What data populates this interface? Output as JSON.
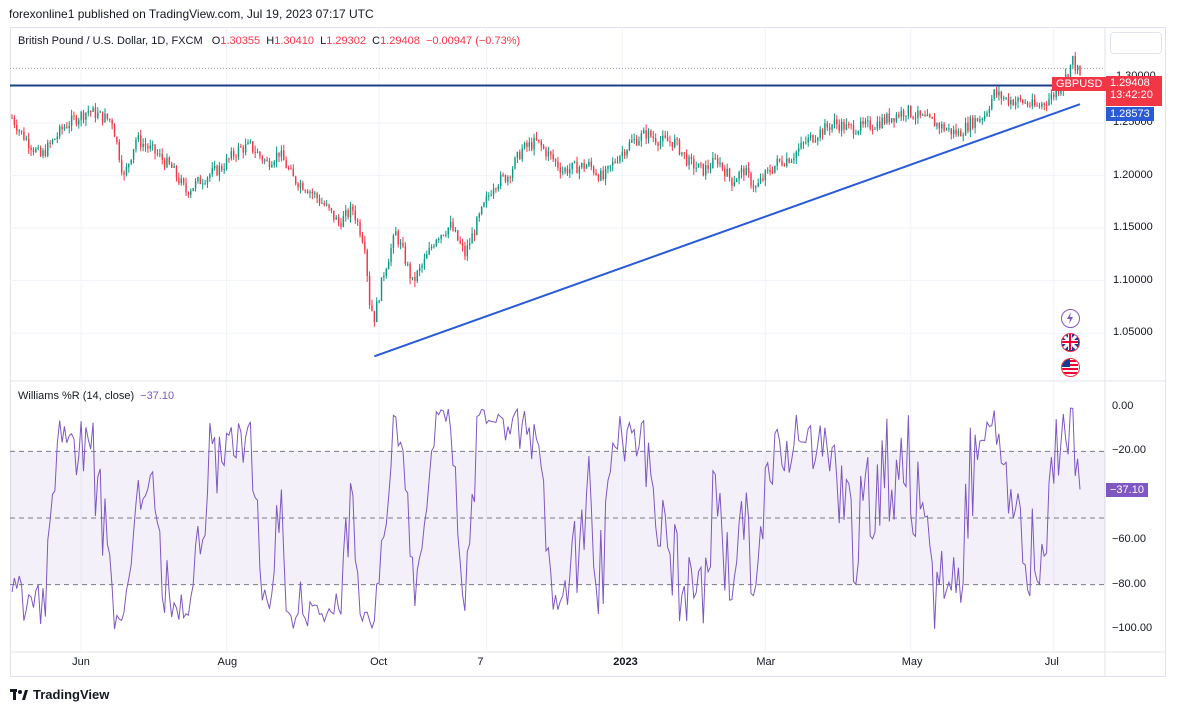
{
  "header": {
    "text": "forexonline1 published on TradingView.com, Jul 19, 2023 07:17 UTC"
  },
  "legend": {
    "symbol": "British Pound / U.S. Dollar, 1D, FXCM",
    "o_label": "O",
    "o_value": "1.30355",
    "h_label": "H",
    "h_value": "1.30410",
    "l_label": "L",
    "l_value": "1.29302",
    "c_label": "C",
    "c_value": "1.29408",
    "change": "−0.00947 (−0.73%)"
  },
  "price_badges": {
    "symbol": "GBPUSD",
    "last": "1.29408",
    "countdown": "13:42:20",
    "level": "1.28573",
    "partial_top": "1.30000"
  },
  "indicator": {
    "name": "Williams %R (14, close)",
    "value": "−37.10",
    "badge": "−37.10"
  },
  "footer": {
    "brand": "TradingView"
  },
  "colors": {
    "up": "#089981",
    "down": "#f23645",
    "line": "#2a5bd7",
    "wr": "#7e57c2",
    "wr_band": "#7e57c2"
  },
  "icons": [
    "lightning-icon",
    "uk-flag-icon",
    "us-flag-icon"
  ],
  "chart_data": [
    {
      "type": "candlestick",
      "title": "British Pound / U.S. Dollar, 1D, FXCM",
      "x_labels": [
        "Jun",
        "Aug",
        "Oct",
        "7",
        "2023",
        "Mar",
        "May",
        "Jul"
      ],
      "y_ticks": [
        "1.05000",
        "1.10000",
        "1.15000",
        "1.20000",
        "1.25000"
      ],
      "ylim": [
        1.015,
        1.31
      ],
      "horizontal_line": 1.2857,
      "trendline": {
        "from": [
          "Sep 26",
          1.028
        ],
        "to": [
          "Jul 19",
          1.268
        ]
      },
      "price_path": [
        [
          0,
          1.255
        ],
        [
          4,
          1.24
        ],
        [
          12,
          1.218
        ],
        [
          22,
          1.247
        ],
        [
          32,
          1.262
        ],
        [
          42,
          1.252
        ],
        [
          47,
          1.198
        ],
        [
          52,
          1.235
        ],
        [
          60,
          1.222
        ],
        [
          67,
          1.207
        ],
        [
          73,
          1.185
        ],
        [
          80,
          1.197
        ],
        [
          88,
          1.208
        ],
        [
          95,
          1.225
        ],
        [
          100,
          1.228
        ],
        [
          107,
          1.212
        ],
        [
          112,
          1.222
        ],
        [
          118,
          1.197
        ],
        [
          124,
          1.188
        ],
        [
          131,
          1.172
        ],
        [
          137,
          1.155
        ],
        [
          143,
          1.168
        ],
        [
          148,
          1.135
        ],
        [
          150,
          1.08
        ],
        [
          152,
          1.065
        ],
        [
          156,
          1.108
        ],
        [
          161,
          1.145
        ],
        [
          164,
          1.127
        ],
        [
          168,
          1.098
        ],
        [
          173,
          1.118
        ],
        [
          178,
          1.142
        ],
        [
          184,
          1.152
        ],
        [
          190,
          1.125
        ],
        [
          196,
          1.16
        ],
        [
          202,
          1.192
        ],
        [
          208,
          1.2
        ],
        [
          214,
          1.225
        ],
        [
          220,
          1.232
        ],
        [
          226,
          1.218
        ],
        [
          231,
          1.205
        ],
        [
          237,
          1.208
        ],
        [
          242,
          1.21
        ],
        [
          248,
          1.197
        ],
        [
          254,
          1.218
        ],
        [
          260,
          1.232
        ],
        [
          266,
          1.24
        ],
        [
          272,
          1.233
        ],
        [
          278,
          1.232
        ],
        [
          284,
          1.212
        ],
        [
          290,
          1.205
        ],
        [
          296,
          1.215
        ],
        [
          302,
          1.195
        ],
        [
          307,
          1.205
        ],
        [
          312,
          1.188
        ],
        [
          316,
          1.2
        ],
        [
          321,
          1.212
        ],
        [
          327,
          1.218
        ],
        [
          333,
          1.232
        ],
        [
          339,
          1.242
        ],
        [
          345,
          1.25
        ],
        [
          351,
          1.245
        ],
        [
          357,
          1.246
        ],
        [
          363,
          1.25
        ],
        [
          369,
          1.256
        ],
        [
          375,
          1.262
        ],
        [
          381,
          1.255
        ],
        [
          387,
          1.25
        ],
        [
          393,
          1.243
        ],
        [
          397,
          1.24
        ],
        [
          402,
          1.25
        ],
        [
          408,
          1.258
        ],
        [
          412,
          1.278
        ],
        [
          418,
          1.272
        ],
        [
          424,
          1.27
        ],
        [
          430,
          1.265
        ],
        [
          436,
          1.275
        ],
        [
          441,
          1.288
        ],
        [
          445,
          1.31
        ],
        [
          448,
          1.294
        ]
      ]
    },
    {
      "type": "line",
      "title": "Williams %R (14, close)",
      "y_ticks": [
        "0.00",
        "−20.00",
        "−40.00",
        "−60.00",
        "−80.00",
        "−100.00"
      ],
      "ylim": [
        -100,
        0
      ],
      "bands": [
        -20,
        -50,
        -80
      ],
      "last_value": -37.1
    }
  ]
}
